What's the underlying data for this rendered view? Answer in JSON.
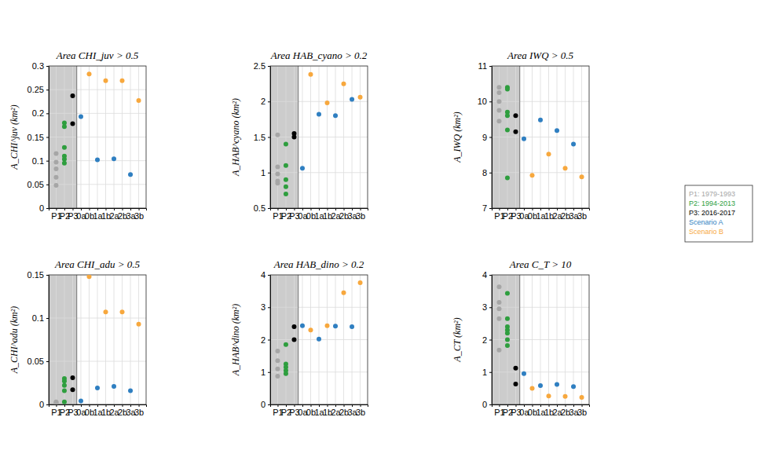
{
  "chart_data": [
    {
      "type": "scatter",
      "title": "Area CHI_juv > 0.5",
      "ylabel": "A_CHI^juv (km²)",
      "categories": [
        "P1",
        "P2",
        "P3",
        "0a",
        "0b",
        "1a",
        "1b",
        "2a",
        "2b",
        "3a",
        "3b"
      ],
      "ylim": [
        0,
        0.3
      ],
      "yticks": [
        0,
        0.05,
        0.1,
        0.15,
        0.2,
        0.25,
        0.3
      ],
      "grid": true,
      "series": [
        {
          "color": "#a6a6a6",
          "x": [
            "P1",
            "P1",
            "P1",
            "P1",
            "P1"
          ],
          "values": [
            0.115,
            0.097,
            0.083,
            0.065,
            0.048
          ]
        },
        {
          "color": "#2e9e3e",
          "x": [
            "P2",
            "P2",
            "P2",
            "P2",
            "P2",
            "P2"
          ],
          "values": [
            0.18,
            0.172,
            0.128,
            0.11,
            0.103,
            0.095
          ]
        },
        {
          "color": "#000000",
          "x": [
            "P3",
            "P3"
          ],
          "values": [
            0.237,
            0.178
          ]
        },
        {
          "color": "#2f7fc1",
          "x": [
            "0a",
            "1a",
            "2a",
            "3a"
          ],
          "values": [
            0.193,
            0.102,
            0.104,
            0.071
          ]
        },
        {
          "color": "#f7a83e",
          "x": [
            "0b",
            "1b",
            "2b",
            "3b"
          ],
          "values": [
            0.283,
            0.269,
            0.269,
            0.227
          ]
        }
      ]
    },
    {
      "type": "scatter",
      "title": "Area HAB_cyano > 0.2",
      "ylabel": "A_HAB^cyano (km²)",
      "categories": [
        "P1",
        "P2",
        "P3",
        "0a",
        "0b",
        "1a",
        "1b",
        "2a",
        "2b",
        "3a",
        "3b"
      ],
      "ylim": [
        0.5,
        2.5
      ],
      "yticks": [
        0.5,
        1,
        1.5,
        2,
        2.5
      ],
      "grid": true,
      "series": [
        {
          "color": "#a6a6a6",
          "x": [
            "P1",
            "P1",
            "P1",
            "P1",
            "P1"
          ],
          "values": [
            1.53,
            1.08,
            0.98,
            0.88,
            0.85
          ]
        },
        {
          "color": "#2e9e3e",
          "x": [
            "P2",
            "P2",
            "P2",
            "P2",
            "P2"
          ],
          "values": [
            1.4,
            1.1,
            0.9,
            0.8,
            0.7
          ]
        },
        {
          "color": "#000000",
          "x": [
            "P3",
            "P3"
          ],
          "values": [
            1.55,
            1.5
          ]
        },
        {
          "color": "#2f7fc1",
          "x": [
            "0a",
            "1a",
            "2a",
            "3a"
          ],
          "values": [
            1.06,
            1.82,
            1.8,
            2.03
          ]
        },
        {
          "color": "#f7a83e",
          "x": [
            "0b",
            "1b",
            "2b",
            "3b"
          ],
          "values": [
            2.38,
            1.98,
            2.25,
            2.06
          ]
        }
      ]
    },
    {
      "type": "scatter",
      "title": "Area IWQ > 0.5",
      "ylabel": "A_IWQ (km²)",
      "categories": [
        "P1",
        "P2",
        "P3",
        "0a",
        "0b",
        "1a",
        "1b",
        "2a",
        "2b",
        "3a",
        "3b"
      ],
      "ylim": [
        7,
        11
      ],
      "yticks": [
        7,
        8,
        9,
        10,
        11
      ],
      "grid": true,
      "legend": "right",
      "series": [
        {
          "name": "P1: 1979-1993",
          "color": "#a6a6a6",
          "x": [
            "P1",
            "P1",
            "P1",
            "P1",
            "P1"
          ],
          "values": [
            10.4,
            10.25,
            10.0,
            9.75,
            9.45
          ]
        },
        {
          "name": "P2: 1994-2013",
          "color": "#2e9e3e",
          "x": [
            "P2",
            "P2",
            "P2",
            "P2",
            "P2",
            "P2"
          ],
          "values": [
            10.4,
            10.35,
            9.7,
            9.6,
            9.2,
            7.85
          ]
        },
        {
          "name": "P3: 2016-2017",
          "color": "#000000",
          "x": [
            "P3",
            "P3"
          ],
          "values": [
            9.6,
            9.15
          ]
        },
        {
          "name": "Scenario A",
          "color": "#2f7fc1",
          "x": [
            "0a",
            "1a",
            "2a",
            "3a"
          ],
          "values": [
            8.95,
            9.48,
            9.18,
            8.8
          ]
        },
        {
          "name": "Scenario B",
          "color": "#f7a83e",
          "x": [
            "0b",
            "1b",
            "2b",
            "3b"
          ],
          "values": [
            7.92,
            8.52,
            8.12,
            7.88
          ]
        }
      ]
    },
    {
      "type": "scatter",
      "title": "Area CHI_adu > 0.5",
      "ylabel": "A_CHI^adu (km²)",
      "categories": [
        "P1",
        "P2",
        "P3",
        "0a",
        "0b",
        "1a",
        "1b",
        "2a",
        "2b",
        "3a",
        "3b"
      ],
      "ylim": [
        0,
        0.15
      ],
      "yticks": [
        0,
        0.05,
        0.1,
        0.15
      ],
      "grid": true,
      "series": [
        {
          "color": "#a6a6a6",
          "x": [
            "P1",
            "P1",
            "P1"
          ],
          "values": [
            0.003,
            0.002,
            0.001
          ]
        },
        {
          "color": "#2e9e3e",
          "x": [
            "P2",
            "P2",
            "P2",
            "P2",
            "P2"
          ],
          "values": [
            0.03,
            0.027,
            0.022,
            0.016,
            0.003
          ]
        },
        {
          "color": "#000000",
          "x": [
            "P3",
            "P3"
          ],
          "values": [
            0.031,
            0.017
          ]
        },
        {
          "color": "#2f7fc1",
          "x": [
            "0a",
            "1a",
            "2a",
            "3a"
          ],
          "values": [
            0.004,
            0.019,
            0.021,
            0.016
          ]
        },
        {
          "color": "#f7a83e",
          "x": [
            "0b",
            "1b",
            "2b",
            "3b"
          ],
          "values": [
            0.148,
            0.107,
            0.107,
            0.093
          ]
        }
      ]
    },
    {
      "type": "scatter",
      "title": "Area HAB_dino > 0.2",
      "ylabel": "A_HAB^dino (km²)",
      "categories": [
        "P1",
        "P2",
        "P3",
        "0a",
        "0b",
        "1a",
        "1b",
        "2a",
        "2b",
        "3a",
        "3b"
      ],
      "ylim": [
        0,
        4
      ],
      "yticks": [
        0,
        1,
        2,
        3,
        4
      ],
      "grid": true,
      "series": [
        {
          "color": "#a6a6a6",
          "x": [
            "P1",
            "P1",
            "P1",
            "P1"
          ],
          "values": [
            1.65,
            1.35,
            1.1,
            0.87
          ]
        },
        {
          "color": "#2e9e3e",
          "x": [
            "P2",
            "P2",
            "P2",
            "P2",
            "P2"
          ],
          "values": [
            1.85,
            1.25,
            1.15,
            1.05,
            0.95
          ]
        },
        {
          "color": "#000000",
          "x": [
            "P3",
            "P3"
          ],
          "values": [
            2.4,
            2.0
          ]
        },
        {
          "color": "#2f7fc1",
          "x": [
            "0a",
            "1a",
            "2a",
            "3a"
          ],
          "values": [
            2.43,
            2.02,
            2.42,
            2.4
          ]
        },
        {
          "color": "#f7a83e",
          "x": [
            "0b",
            "1b",
            "2b",
            "3b"
          ],
          "values": [
            2.3,
            2.43,
            3.45,
            3.76
          ]
        }
      ]
    },
    {
      "type": "scatter",
      "title": "Area C_T > 10",
      "ylabel": "A_CT (km²)",
      "categories": [
        "P1",
        "P2",
        "P3",
        "0a",
        "0b",
        "1a",
        "1b",
        "2a",
        "2b",
        "3a",
        "3b"
      ],
      "ylim": [
        0,
        4
      ],
      "yticks": [
        0,
        1,
        2,
        3,
        4
      ],
      "grid": true,
      "series": [
        {
          "color": "#a6a6a6",
          "x": [
            "P1",
            "P1",
            "P1",
            "P1",
            "P1"
          ],
          "values": [
            3.63,
            3.15,
            2.95,
            2.65,
            1.68
          ]
        },
        {
          "color": "#2e9e3e",
          "x": [
            "P2",
            "P2",
            "P2",
            "P2",
            "P2",
            "P2",
            "P2"
          ],
          "values": [
            3.43,
            2.65,
            2.4,
            2.3,
            2.2,
            2.0,
            1.82
          ]
        },
        {
          "color": "#000000",
          "x": [
            "P3",
            "P3"
          ],
          "values": [
            1.12,
            0.63
          ]
        },
        {
          "color": "#2f7fc1",
          "x": [
            "0a",
            "1a",
            "2a",
            "3a"
          ],
          "values": [
            0.95,
            0.58,
            0.62,
            0.55
          ]
        },
        {
          "color": "#f7a83e",
          "x": [
            "0b",
            "1b",
            "2b",
            "3b"
          ],
          "values": [
            0.5,
            0.26,
            0.25,
            0.22
          ]
        }
      ]
    }
  ]
}
